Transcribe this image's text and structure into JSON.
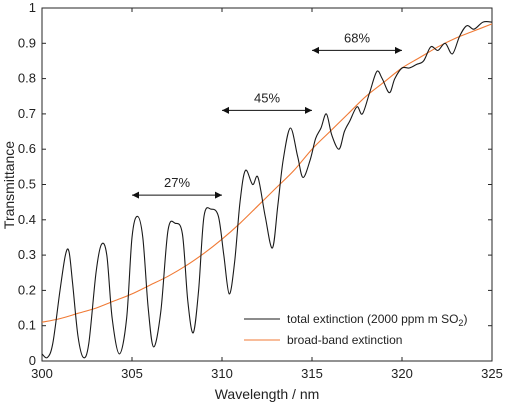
{
  "chart_data": {
    "type": "line",
    "title": "",
    "xlabel": "Wavelength / nm",
    "ylabel": "Transmittance",
    "xlim": [
      300,
      325
    ],
    "ylim": [
      0,
      1
    ],
    "xticks": [
      300,
      305,
      310,
      315,
      320,
      325
    ],
    "yticks": [
      0,
      0.1,
      0.2,
      0.3,
      0.4,
      0.5,
      0.6,
      0.7,
      0.8,
      0.9,
      1
    ],
    "grid": false,
    "legend_position": "bottom-right",
    "series": [
      {
        "name": "total extinction (2000 ppm m SO",
        "name_subscript": "2",
        "name_suffix": ")",
        "color": "#1a1a1a",
        "x": [
          300.0,
          300.3,
          300.6,
          301.0,
          301.3,
          301.5,
          301.7,
          302.0,
          302.3,
          302.6,
          303.0,
          303.3,
          303.6,
          303.9,
          304.3,
          304.7,
          305.0,
          305.3,
          305.6,
          305.9,
          306.2,
          306.6,
          307.0,
          307.4,
          307.8,
          308.1,
          308.4,
          308.7,
          309.0,
          309.4,
          309.8,
          310.1,
          310.4,
          310.7,
          311.0,
          311.3,
          311.7,
          312.0,
          312.4,
          312.8,
          313.1,
          313.4,
          313.8,
          314.2,
          314.5,
          314.9,
          315.2,
          315.5,
          315.8,
          316.1,
          316.5,
          316.8,
          317.1,
          317.5,
          317.8,
          318.2,
          318.6,
          318.9,
          319.3,
          319.6,
          320.0,
          320.4,
          320.8,
          321.2,
          321.6,
          322.0,
          322.4,
          322.8,
          323.2,
          323.6,
          324.0,
          324.5,
          325.0
        ],
        "y": [
          0.02,
          0.01,
          0.05,
          0.2,
          0.3,
          0.31,
          0.22,
          0.07,
          0.01,
          0.05,
          0.25,
          0.33,
          0.3,
          0.12,
          0.02,
          0.12,
          0.35,
          0.41,
          0.35,
          0.15,
          0.04,
          0.14,
          0.37,
          0.39,
          0.36,
          0.17,
          0.08,
          0.2,
          0.41,
          0.43,
          0.41,
          0.3,
          0.19,
          0.28,
          0.45,
          0.54,
          0.5,
          0.52,
          0.41,
          0.32,
          0.44,
          0.57,
          0.66,
          0.58,
          0.52,
          0.57,
          0.63,
          0.66,
          0.7,
          0.64,
          0.6,
          0.65,
          0.68,
          0.72,
          0.7,
          0.76,
          0.82,
          0.8,
          0.76,
          0.8,
          0.83,
          0.83,
          0.84,
          0.85,
          0.89,
          0.88,
          0.9,
          0.87,
          0.92,
          0.95,
          0.94,
          0.96,
          0.96
        ]
      },
      {
        "name": "broad-band extinction",
        "color": "#f07a35",
        "x": [
          300,
          301,
          302,
          303,
          304,
          305,
          306,
          307,
          308,
          309,
          310,
          311,
          312,
          313,
          314,
          315,
          316,
          317,
          318,
          319,
          320,
          321,
          322,
          323,
          324,
          325
        ],
        "y": [
          0.11,
          0.12,
          0.135,
          0.15,
          0.17,
          0.19,
          0.215,
          0.24,
          0.27,
          0.305,
          0.345,
          0.39,
          0.44,
          0.49,
          0.54,
          0.6,
          0.65,
          0.7,
          0.75,
          0.79,
          0.83,
          0.86,
          0.89,
          0.915,
          0.935,
          0.955
        ]
      }
    ],
    "annotations": [
      {
        "label": "27%",
        "x_start": 305,
        "x_end": 310,
        "y": 0.47
      },
      {
        "label": "45%",
        "x_start": 310,
        "x_end": 315,
        "y": 0.71
      },
      {
        "label": "68%",
        "x_start": 315,
        "x_end": 320,
        "y": 0.88
      }
    ]
  }
}
